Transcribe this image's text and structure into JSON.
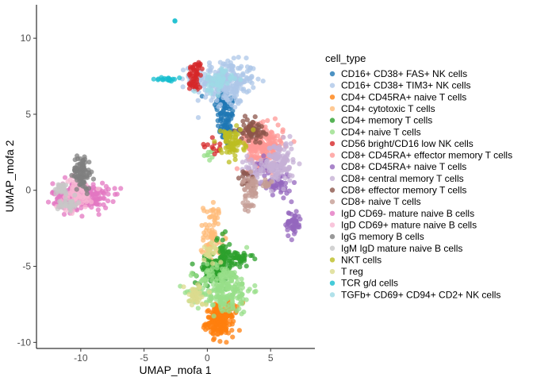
{
  "chart_data": {
    "type": "scatter",
    "xlabel": "UMAP_mofa 1",
    "ylabel": "UMAP_mofa 2",
    "xlim": [
      -13.5,
      8.5
    ],
    "ylim": [
      -10.4,
      12.2
    ],
    "xticks": [
      -10,
      -5,
      0,
      5
    ],
    "yticks": [
      -10,
      -5,
      0,
      5,
      10
    ],
    "grid": false,
    "legend": {
      "title": "cell_type",
      "placement": "right"
    },
    "series": [
      {
        "name": "CD16+ CD38+ FAS+ NK cells",
        "color": "#1F77B4",
        "clusters": [
          {
            "cx": 1.5,
            "cy": 4.6,
            "sx": 0.35,
            "sy": 0.9,
            "n": 90
          },
          {
            "cx": 1.2,
            "cy": 6.0,
            "sx": 0.4,
            "sy": 0.4,
            "n": 30
          }
        ]
      },
      {
        "name": "CD16+ CD38+ TIM3+ NK cells",
        "color": "#AEC7E8",
        "clusters": [
          {
            "cx": 1.3,
            "cy": 7.3,
            "sx": 1.3,
            "sy": 0.6,
            "n": 220
          },
          {
            "cx": 1.7,
            "cy": 6.2,
            "sx": 0.5,
            "sy": 0.4,
            "n": 40
          }
        ]
      },
      {
        "name": "CD4+ CD45RA+ naive T cells",
        "color": "#FF7F0E",
        "clusters": [
          {
            "cx": 1.0,
            "cy": -8.7,
            "sx": 0.55,
            "sy": 0.45,
            "n": 160
          },
          {
            "cx": 1.3,
            "cy": -7.8,
            "sx": 0.5,
            "sy": 0.3,
            "n": 40
          }
        ]
      },
      {
        "name": "CD4+ cytotoxic T cells",
        "color": "#FFBB78",
        "clusters": [
          {
            "cx": 0.4,
            "cy": -3.0,
            "sx": 0.35,
            "sy": 1.1,
            "n": 90
          }
        ]
      },
      {
        "name": "CD4+ memory T cells",
        "color": "#2CA02C",
        "clusters": [
          {
            "cx": 0.5,
            "cy": -5.3,
            "sx": 0.7,
            "sy": 0.4,
            "n": 120
          },
          {
            "cx": 2.2,
            "cy": -4.5,
            "sx": 0.7,
            "sy": 0.3,
            "n": 50
          },
          {
            "cx": 1.2,
            "cy": -4.0,
            "sx": 0.25,
            "sy": 0.7,
            "n": 30
          }
        ]
      },
      {
        "name": "CD4+ naive T cells",
        "color": "#98DF8A",
        "clusters": [
          {
            "cx": 1.3,
            "cy": -6.5,
            "sx": 1.1,
            "sy": 0.8,
            "n": 230
          },
          {
            "cx": 0.3,
            "cy": 2.3,
            "sx": 0.2,
            "sy": 0.15,
            "n": 8
          }
        ]
      },
      {
        "name": "CD56 bright/CD16 low NK cells",
        "color": "#D62728",
        "clusters": [
          {
            "cx": -0.9,
            "cy": 7.9,
            "sx": 0.3,
            "sy": 0.3,
            "n": 30
          },
          {
            "cx": -1.0,
            "cy": 7.1,
            "sx": 0.25,
            "sy": 0.3,
            "n": 20
          },
          {
            "cx": 0.6,
            "cy": 3.0,
            "sx": 0.4,
            "sy": 0.3,
            "n": 12
          }
        ]
      },
      {
        "name": "CD8+ CD45RA+ effector memory T cells",
        "color": "#FF9896",
        "clusters": [
          {
            "cx": 4.6,
            "cy": 2.9,
            "sx": 0.7,
            "sy": 0.7,
            "n": 190
          },
          {
            "cx": 3.5,
            "cy": 3.0,
            "sx": 0.4,
            "sy": 0.5,
            "n": 40
          }
        ]
      },
      {
        "name": "CD8+ CD45RA+ naive T cells",
        "color": "#9467BD",
        "clusters": [
          {
            "cx": 6.8,
            "cy": -2.2,
            "sx": 0.3,
            "sy": 0.45,
            "n": 50
          },
          {
            "cx": 5.5,
            "cy": 0.4,
            "sx": 0.55,
            "sy": 0.4,
            "n": 50
          },
          {
            "cx": 4.6,
            "cy": 1.6,
            "sx": 0.4,
            "sy": 0.3,
            "n": 25
          }
        ]
      },
      {
        "name": "CD8+ central memory T cells",
        "color": "#C5B0D5",
        "clusters": [
          {
            "cx": 5.7,
            "cy": 1.8,
            "sx": 0.55,
            "sy": 0.7,
            "n": 120
          },
          {
            "cx": 3.6,
            "cy": 1.3,
            "sx": 0.5,
            "sy": 0.4,
            "n": 40
          }
        ]
      },
      {
        "name": "CD8+ effector memory T cells",
        "color": "#8C564B",
        "clusters": [
          {
            "cx": 3.5,
            "cy": 4.0,
            "sx": 0.45,
            "sy": 0.35,
            "n": 70
          },
          {
            "cx": 3.1,
            "cy": 0.7,
            "sx": 0.3,
            "sy": 0.3,
            "n": 15
          }
        ]
      },
      {
        "name": "CD8+ naive T cells",
        "color": "#C49C94",
        "clusters": [
          {
            "cx": 3.4,
            "cy": 0.2,
            "sx": 0.3,
            "sy": 0.35,
            "n": 40
          },
          {
            "cx": 3.2,
            "cy": -0.9,
            "sx": 0.2,
            "sy": 0.2,
            "n": 12
          },
          {
            "cx": 4.6,
            "cy": 0.4,
            "sx": 0.3,
            "sy": 0.2,
            "n": 12
          }
        ]
      },
      {
        "name": "IgD CD69- mature naive B cells",
        "color": "#E377C2",
        "clusters": [
          {
            "cx": -10.0,
            "cy": -0.4,
            "sx": 1.1,
            "sy": 0.45,
            "n": 240
          }
        ]
      },
      {
        "name": "IgD CD69+ mature naive B cells",
        "color": "#F7B6D2",
        "clusters": [
          {
            "cx": -10.3,
            "cy": -0.2,
            "sx": 0.6,
            "sy": 0.5,
            "n": 80
          }
        ]
      },
      {
        "name": "IgG memory B cells",
        "color": "#7F7F7F",
        "clusters": [
          {
            "cx": -9.9,
            "cy": 1.2,
            "sx": 0.35,
            "sy": 0.55,
            "n": 90
          }
        ]
      },
      {
        "name": "IgM IgD mature naive B cells",
        "color": "#C7C7C7",
        "clusters": [
          {
            "cx": -11.5,
            "cy": 0.1,
            "sx": 0.3,
            "sy": 0.2,
            "n": 30
          },
          {
            "cx": -11.0,
            "cy": -0.9,
            "sx": 0.4,
            "sy": 0.2,
            "n": 30
          }
        ]
      },
      {
        "name": "NKT cells",
        "color": "#BCBD22",
        "clusters": [
          {
            "cx": 2.0,
            "cy": 3.0,
            "sx": 0.45,
            "sy": 0.45,
            "n": 60
          },
          {
            "cx": 1.5,
            "cy": 3.6,
            "sx": 0.3,
            "sy": 0.2,
            "n": 15
          }
        ]
      },
      {
        "name": "T reg",
        "color": "#DBDB8D",
        "clusters": [
          {
            "cx": -0.9,
            "cy": -6.9,
            "sx": 0.45,
            "sy": 0.35,
            "n": 45
          },
          {
            "cx": 0.3,
            "cy": -4.2,
            "sx": 0.3,
            "sy": 0.4,
            "n": 20
          }
        ]
      },
      {
        "name": "TCR g/d cells",
        "color": "#17BECF",
        "clusters": [
          {
            "cx": -3.0,
            "cy": 7.3,
            "sx": 0.4,
            "sy": 0.05,
            "n": 20
          },
          {
            "cx": -2.6,
            "cy": 11.1,
            "sx": 0.03,
            "sy": 0.03,
            "n": 2
          }
        ]
      },
      {
        "name": "TGFb+ CD69+ CD94+ CD2+ NK cells",
        "color": "#9EDAE5",
        "clusters": [
          {
            "cx": 0.8,
            "cy": 7.2,
            "sx": 0.6,
            "sy": 0.4,
            "n": 50
          }
        ]
      }
    ]
  }
}
